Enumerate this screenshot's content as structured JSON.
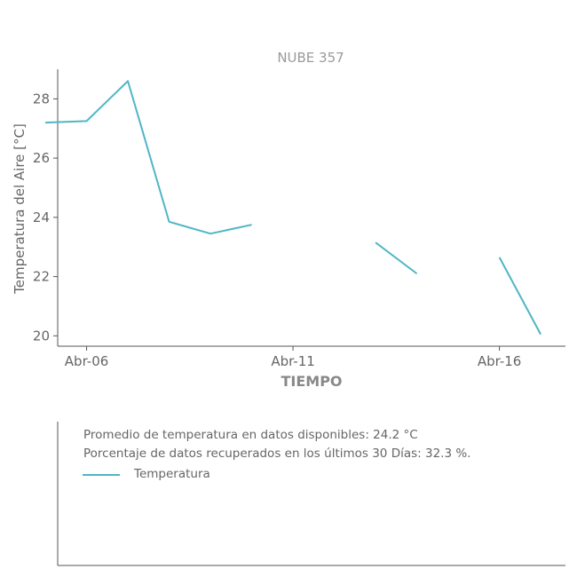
{
  "chart_data": {
    "type": "line",
    "title": "NUBE 357",
    "xlabel": "TIEMPO",
    "ylabel": "Temperatura del Aire [°C]",
    "x_ticks": [
      "Abr-06",
      "Abr-11",
      "Abr-16"
    ],
    "x_tick_days": [
      6,
      11,
      16
    ],
    "xlim": [
      5.3,
      17.6
    ],
    "ylim": [
      19.65,
      29.0
    ],
    "y_ticks": [
      20,
      22,
      24,
      26,
      28
    ],
    "grid": false,
    "series": [
      {
        "name": "Temperatura",
        "color": "#4fb6c4",
        "segments": [
          [
            [
              5,
              27.2
            ],
            [
              6,
              27.25
            ],
            [
              7,
              28.6
            ],
            [
              8,
              23.85
            ],
            [
              9,
              23.45
            ],
            [
              10,
              23.75
            ]
          ],
          [
            [
              13,
              23.15
            ],
            [
              14,
              22.1
            ]
          ],
          [
            [
              16,
              22.65
            ],
            [
              17,
              20.05
            ]
          ]
        ]
      }
    ]
  },
  "info": {
    "line1": "Promedio de temperatura en datos disponibles: 24.2 °C",
    "line2": "Porcentaje de datos recuperados en los últimos 30 Días: 32.3 %.",
    "legend_label": "Temperatura"
  }
}
